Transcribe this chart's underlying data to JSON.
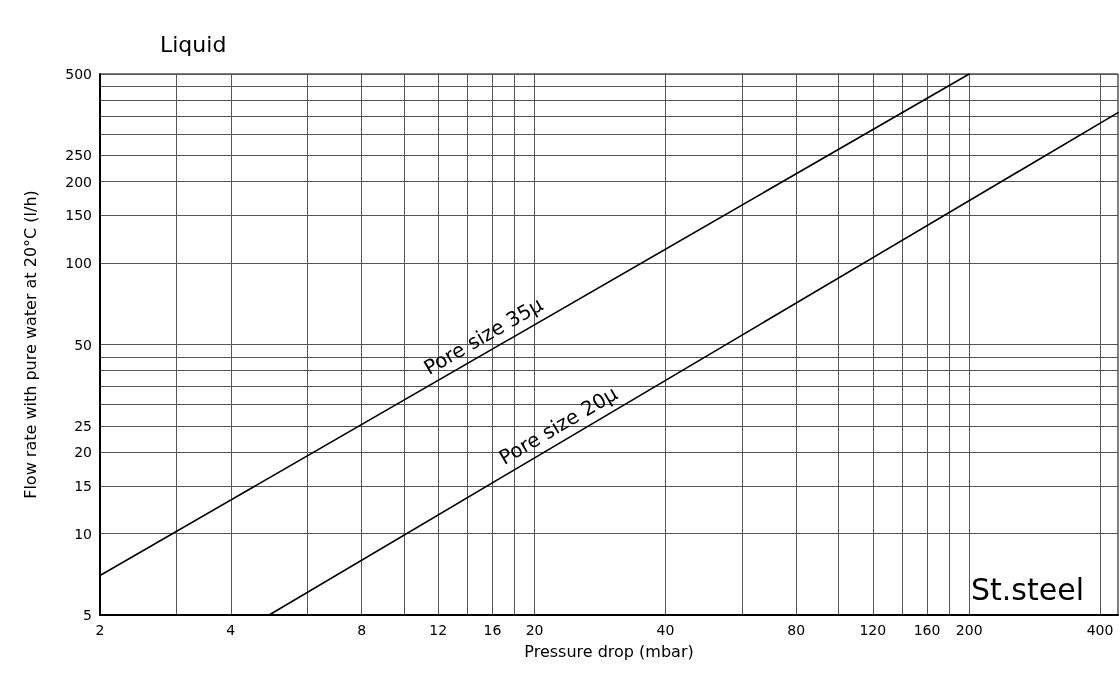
{
  "chart_data": {
    "type": "line",
    "title": "Liquid",
    "xlabel": "Pressure drop (mbar)",
    "ylabel": "Flow rate with pure water at 20°C (l/h)",
    "annotations": [
      "St.steel"
    ],
    "log": "xy",
    "grid": true,
    "legend": false,
    "marker": "none",
    "line_style": "solid",
    "xlim": [
      2,
      440
    ],
    "ylim": [
      5,
      500
    ],
    "xticks": [
      2,
      {
        "value": 3,
        "label": null
      },
      4,
      {
        "value": 6,
        "label": null
      },
      8,
      {
        "value": 10,
        "label": null
      },
      12,
      {
        "value": 14,
        "label": null
      },
      16,
      {
        "value": 18,
        "label": null
      },
      20,
      40,
      {
        "value": 60,
        "label": null
      },
      80,
      {
        "value": 100,
        "label": null
      },
      120,
      {
        "value": 140,
        "label": null
      },
      160,
      {
        "value": 180,
        "label": null
      },
      200,
      400
    ],
    "yticks": [
      5,
      10,
      15,
      20,
      25,
      {
        "value": 30,
        "label": null
      },
      {
        "value": 35,
        "label": null
      },
      {
        "value": 40,
        "label": null
      },
      {
        "value": 45,
        "label": null
      },
      50,
      100,
      150,
      200,
      250,
      {
        "value": 300,
        "label": null
      },
      {
        "value": 350,
        "label": null
      },
      {
        "value": 400,
        "label": null
      },
      {
        "value": 450,
        "label": null
      },
      500
    ],
    "series": [
      {
        "name": "Pore size 35μ",
        "color": "#000000",
        "x": [
          2,
          200
        ],
        "values": [
          7,
          500
        ]
      },
      {
        "name": "Pore size 20μ",
        "color": "#000000",
        "x": [
          4.9,
          440
        ],
        "values": [
          5,
          360
        ]
      }
    ]
  }
}
